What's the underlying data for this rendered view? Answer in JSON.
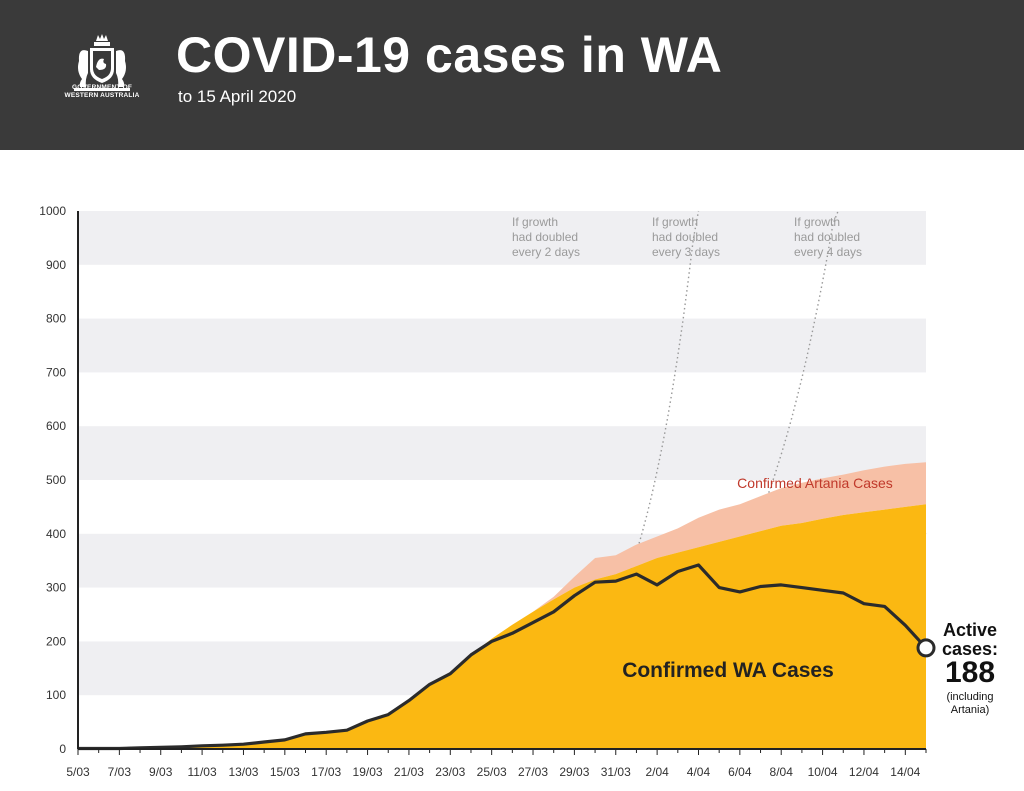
{
  "header": {
    "title": "COVID-19 cases in WA",
    "subtitle": "to 15 April 2020",
    "logo_text": [
      "GOVERNMENT OF",
      "WESTERN AUSTRALIA"
    ]
  },
  "colors": {
    "header_bg": "#3a3a3a",
    "wa_cases": "#fbb812",
    "artania_cases": "#f7c0a6",
    "active_line": "#2b2b2b",
    "artania_label": "#c0392b",
    "band": "#efeff2",
    "doubling": "#999999"
  },
  "chart_data": {
    "type": "area",
    "x_tick_labels": [
      "5/03",
      "7/03",
      "9/03",
      "11/03",
      "13/03",
      "15/03",
      "17/03",
      "19/03",
      "21/03",
      "23/03",
      "25/03",
      "27/03",
      "29/03",
      "31/03",
      "2/04",
      "4/04",
      "6/04",
      "8/04",
      "10/04",
      "12/04",
      "14/04"
    ],
    "xlim": [
      "2020-03-05",
      "2020-04-15"
    ],
    "ylim": [
      0,
      1000
    ],
    "y_ticks": [
      0,
      100,
      200,
      300,
      400,
      500,
      600,
      700,
      800,
      900,
      1000
    ],
    "grid": "alternating horizontal bands",
    "series": [
      {
        "name": "Confirmed WA Cases",
        "kind": "area",
        "x": [
          "2020-03-05",
          "2020-03-06",
          "2020-03-07",
          "2020-03-08",
          "2020-03-09",
          "2020-03-10",
          "2020-03-11",
          "2020-03-12",
          "2020-03-13",
          "2020-03-14",
          "2020-03-15",
          "2020-03-16",
          "2020-03-17",
          "2020-03-18",
          "2020-03-19",
          "2020-03-20",
          "2020-03-21",
          "2020-03-22",
          "2020-03-23",
          "2020-03-24",
          "2020-03-25",
          "2020-03-26",
          "2020-03-27",
          "2020-03-28",
          "2020-03-29",
          "2020-03-30",
          "2020-03-31",
          "2020-04-01",
          "2020-04-02",
          "2020-04-03",
          "2020-04-04",
          "2020-04-05",
          "2020-04-06",
          "2020-04-07",
          "2020-04-08",
          "2020-04-09",
          "2020-04-10",
          "2020-04-11",
          "2020-04-12",
          "2020-04-13",
          "2020-04-14",
          "2020-04-15"
        ],
        "values": [
          1,
          1,
          1,
          2,
          3,
          4,
          6,
          7,
          9,
          13,
          17,
          28,
          31,
          35,
          52,
          64,
          90,
          120,
          140,
          175,
          205,
          231,
          255,
          278,
          300,
          315,
          325,
          340,
          355,
          365,
          375,
          385,
          395,
          405,
          415,
          420,
          428,
          435,
          440,
          445,
          450,
          455
        ]
      },
      {
        "name": "Confirmed Artania Cases",
        "kind": "area",
        "stacked_on": "Confirmed WA Cases",
        "x": [
          "2020-03-24",
          "2020-03-25",
          "2020-03-26",
          "2020-03-27",
          "2020-03-28",
          "2020-03-29",
          "2020-03-30",
          "2020-03-31",
          "2020-04-01",
          "2020-04-02",
          "2020-04-03",
          "2020-04-04",
          "2020-04-05",
          "2020-04-06",
          "2020-04-07",
          "2020-04-08",
          "2020-04-09",
          "2020-04-10",
          "2020-04-11",
          "2020-04-12",
          "2020-04-13",
          "2020-04-14",
          "2020-04-15"
        ],
        "values": [
          0,
          0,
          0,
          0,
          5,
          20,
          40,
          35,
          40,
          40,
          45,
          55,
          60,
          60,
          65,
          70,
          75,
          75,
          75,
          78,
          80,
          80,
          78
        ]
      },
      {
        "name": "Active cases",
        "kind": "line",
        "x": [
          "2020-03-05",
          "2020-03-06",
          "2020-03-07",
          "2020-03-08",
          "2020-03-09",
          "2020-03-10",
          "2020-03-11",
          "2020-03-12",
          "2020-03-13",
          "2020-03-14",
          "2020-03-15",
          "2020-03-16",
          "2020-03-17",
          "2020-03-18",
          "2020-03-19",
          "2020-03-20",
          "2020-03-21",
          "2020-03-22",
          "2020-03-23",
          "2020-03-24",
          "2020-03-25",
          "2020-03-26",
          "2020-03-27",
          "2020-03-28",
          "2020-03-29",
          "2020-03-30",
          "2020-03-31",
          "2020-04-01",
          "2020-04-02",
          "2020-04-03",
          "2020-04-04",
          "2020-04-05",
          "2020-04-06",
          "2020-04-07",
          "2020-04-08",
          "2020-04-09",
          "2020-04-10",
          "2020-04-11",
          "2020-04-12",
          "2020-04-13",
          "2020-04-14",
          "2020-04-15"
        ],
        "values": [
          1,
          1,
          1,
          2,
          3,
          4,
          6,
          7,
          9,
          13,
          17,
          28,
          31,
          35,
          52,
          64,
          90,
          120,
          140,
          175,
          200,
          215,
          235,
          255,
          285,
          310,
          312,
          325,
          305,
          330,
          342,
          300,
          292,
          302,
          305,
          300,
          295,
          290,
          270,
          265,
          230,
          188
        ]
      }
    ],
    "doubling_curves": [
      {
        "label": [
          "If growth",
          "had doubled",
          "every 2 days"
        ],
        "days": 2
      },
      {
        "label": [
          "If growth",
          "had doubled",
          "every 3 days"
        ],
        "days": 3
      },
      {
        "label": [
          "If growth",
          "had doubled",
          "every 4 days"
        ],
        "days": 4
      }
    ],
    "annotations": {
      "wa_label": "Confirmed WA Cases",
      "artania_label": "Confirmed Artania Cases",
      "active_title": [
        "Active",
        "cases:"
      ],
      "active_value": "188",
      "active_note": [
        "(including",
        "Artania)"
      ]
    }
  }
}
